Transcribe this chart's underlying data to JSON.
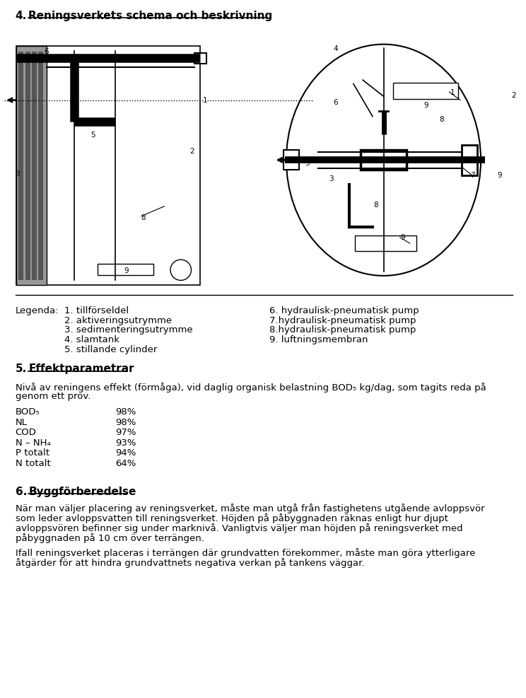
{
  "bg_color": "#ffffff",
  "text_color": "#000000",
  "page_width": 9.6,
  "page_height": 12.83,
  "section4_num": "4.",
  "section4_text": "Reningsverkets schema och beskrivning",
  "section5_num": "5.",
  "section5_text": "Effektparametrar",
  "section6_num": "6.",
  "section6_text": "Byggförberedelse",
  "intro_line1": "Nivå av reningens effekt (förmåga), vid daglig organisk belastning BOD₅ kg/dag, som tagits reda på",
  "intro_line2": "genom ett prov.",
  "parameters": [
    [
      "BOD₅",
      "98%"
    ],
    [
      "NL",
      "98%"
    ],
    [
      "COD",
      "97%"
    ],
    [
      "N – NH₄",
      "93%"
    ],
    [
      "P totalt",
      "94%"
    ],
    [
      "N totalt",
      "64%"
    ]
  ],
  "legend_label": "Legenda:",
  "legend_left": [
    "1. tillförseldel",
    "2. aktiveringsutrymme",
    "3. sedimenteringsutrymme",
    "4. slamtank",
    "5. stillande cylinder"
  ],
  "legend_right": [
    "6. hydraulisk-pneumatisk pump",
    "7.hydraulisk-pneumatisk pump",
    "8.hydraulisk-pneumatisk pump",
    "9. luftningsmembran"
  ],
  "sec6_para1_lines": [
    "När man väljer placering av reningsverket, måste man utgå från fastighetens utgående avloppsvör",
    "som leder avloppsvatten till reningsverket. Höjden på påbyggnaden räknas enligt hur djupt",
    "avloppsvören befinner sig under marknivå. Vanligtvis väljer man höjden på reningsverket med",
    "påbyggnaden på 10 cm över terrängen."
  ],
  "sec6_para2_lines": [
    "Ifall reningsverket placeras i terrängen där grundvatten förekommer, måste man göra ytterligare",
    "åtgärder för att hindra grundvattnets negativa verkan på tankens väggar."
  ]
}
